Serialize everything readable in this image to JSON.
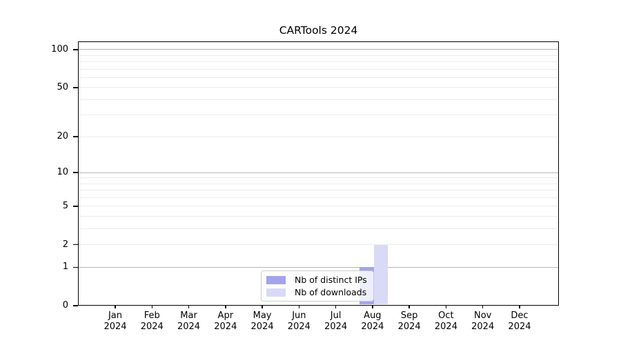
{
  "chart_data": {
    "type": "bar",
    "title": "CARTools 2024",
    "scale": "log1p",
    "categories": [
      "Jan 2024",
      "Feb 2024",
      "Mar 2024",
      "Apr 2024",
      "May 2024",
      "Jun 2024",
      "Jul 2024",
      "Aug 2024",
      "Sep 2024",
      "Oct 2024",
      "Nov 2024",
      "Dec 2024"
    ],
    "series": [
      {
        "name": "Nb of distinct IPs",
        "color": "#a3a3ec",
        "values": [
          0,
          0,
          0,
          0,
          0,
          0,
          0,
          1,
          0,
          0,
          0,
          0
        ]
      },
      {
        "name": "Nb of downloads",
        "color": "#d9d9f8",
        "values": [
          0,
          0,
          0,
          0,
          0,
          0,
          0,
          2,
          0,
          0,
          0,
          0
        ]
      }
    ],
    "ylim": [
      0,
      116
    ],
    "y_tick_values": [
      0,
      1,
      2,
      5,
      10,
      20,
      50,
      100
    ],
    "major_gridlines": [
      1,
      10,
      100
    ],
    "minor_gridlines": [
      2,
      3,
      4,
      5,
      6,
      7,
      8,
      9,
      20,
      30,
      40,
      50,
      60,
      70,
      80,
      90
    ],
    "grid": "horizontal",
    "legend_position": "lower-center-inside",
    "axis_color": "#000000",
    "major_grid_color": "#b4b4b4",
    "minor_grid_color": "#ebebeb"
  }
}
